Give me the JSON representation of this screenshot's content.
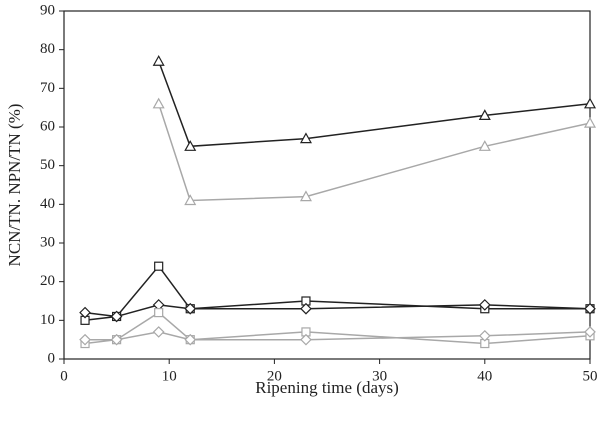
{
  "chart_data": {
    "type": "line",
    "title": "",
    "xlabel": "Ripening time (days)",
    "ylabel": "NCN/TN. NPN/TN (%)",
    "xlim": [
      0,
      50
    ],
    "ylim": [
      0,
      90
    ],
    "xticks": [
      0,
      10,
      20,
      30,
      40,
      50
    ],
    "yticks": [
      0,
      10,
      20,
      30,
      40,
      50,
      60,
      70,
      80,
      90
    ],
    "grid": false,
    "legend": "none",
    "series": [
      {
        "marker": "triangle",
        "color": "#222222",
        "x": [
          9,
          12,
          23,
          40,
          50
        ],
        "y": [
          77,
          55,
          57,
          63,
          66
        ]
      },
      {
        "marker": "triangle",
        "color": "#a8a8a8",
        "x": [
          9,
          12,
          23,
          40,
          50
        ],
        "y": [
          66,
          41,
          42,
          55,
          61
        ]
      },
      {
        "marker": "square",
        "color": "#222222",
        "x": [
          2,
          5,
          9,
          12,
          23,
          40,
          50
        ],
        "y": [
          10,
          11,
          24,
          13,
          15,
          13,
          13
        ]
      },
      {
        "marker": "diamond",
        "color": "#222222",
        "x": [
          2,
          5,
          9,
          12,
          23,
          40,
          50
        ],
        "y": [
          12,
          11,
          14,
          13,
          13,
          14,
          13
        ]
      },
      {
        "marker": "square",
        "color": "#a8a8a8",
        "x": [
          2,
          5,
          9,
          12,
          23,
          40,
          50
        ],
        "y": [
          4,
          5,
          12,
          5,
          7,
          4,
          6
        ]
      },
      {
        "marker": "diamond",
        "color": "#a8a8a8",
        "x": [
          2,
          5,
          9,
          12,
          23,
          40,
          50
        ],
        "y": [
          5,
          5,
          7,
          5,
          5,
          6,
          7
        ]
      }
    ]
  }
}
